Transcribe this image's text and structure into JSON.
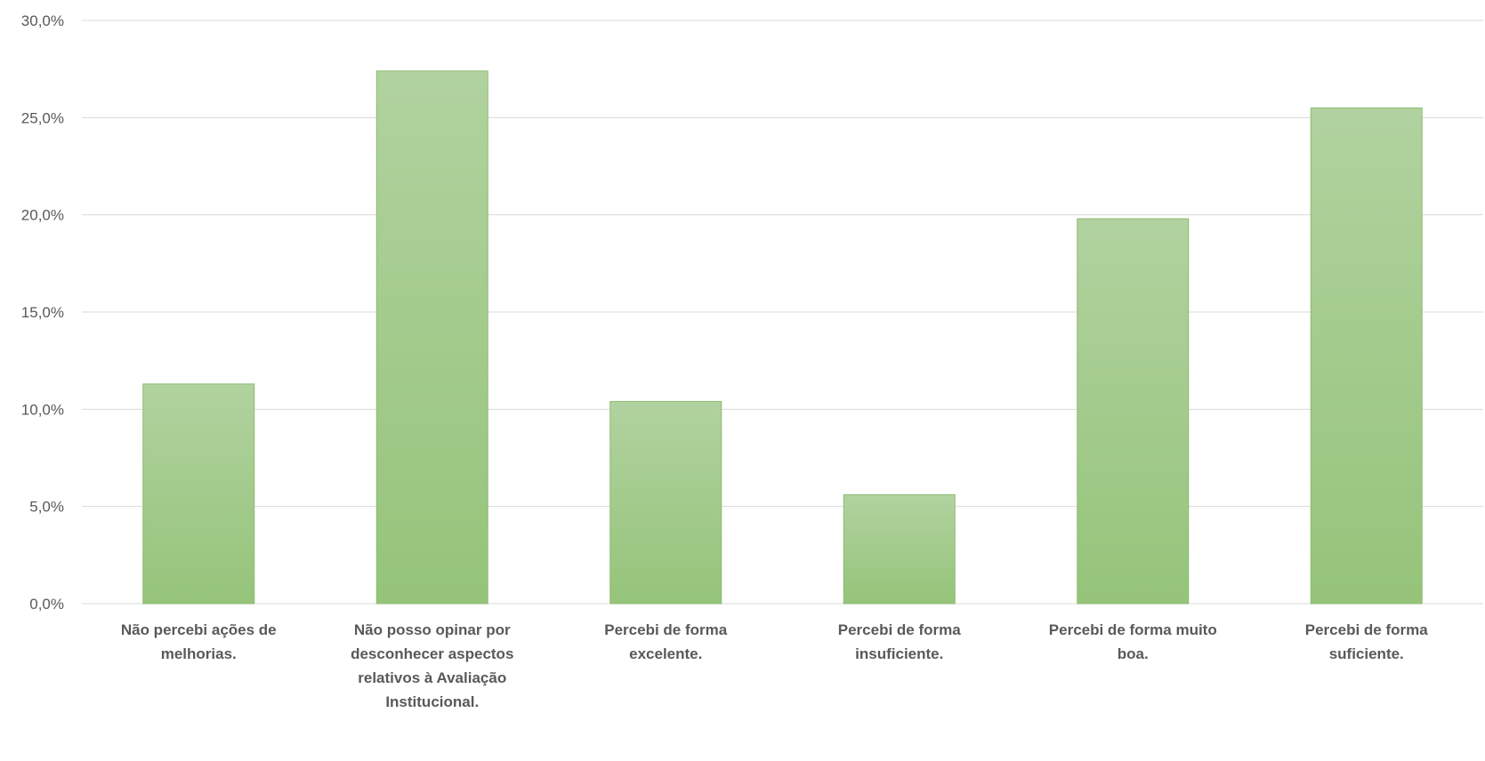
{
  "chart_data": {
    "type": "bar",
    "title": "",
    "xlabel": "",
    "ylabel": "",
    "categories": [
      [
        "Não percebi ações de",
        "melhorias."
      ],
      [
        "Não posso opinar por",
        "desconhecer aspectos",
        "relativos à Avaliação",
        "Institucional."
      ],
      [
        "Percebi de forma",
        "excelente."
      ],
      [
        "Percebi de forma",
        "insuficiente."
      ],
      [
        "Percebi de forma muito",
        "boa."
      ],
      [
        "Percebi de forma",
        "suficiente."
      ]
    ],
    "values": [
      11.3,
      27.4,
      10.4,
      5.6,
      19.8,
      25.5
    ],
    "ylim": [
      0,
      30
    ],
    "yticks": [
      "0,0%",
      "5,0%",
      "10,0%",
      "15,0%",
      "20,0%",
      "25,0%",
      "30,0%"
    ],
    "grid": true,
    "legend": "none",
    "colors": {
      "bar_top": "#b1d29f",
      "bar_bottom": "#95c47a",
      "bar_edge": "#8dbb71"
    }
  }
}
